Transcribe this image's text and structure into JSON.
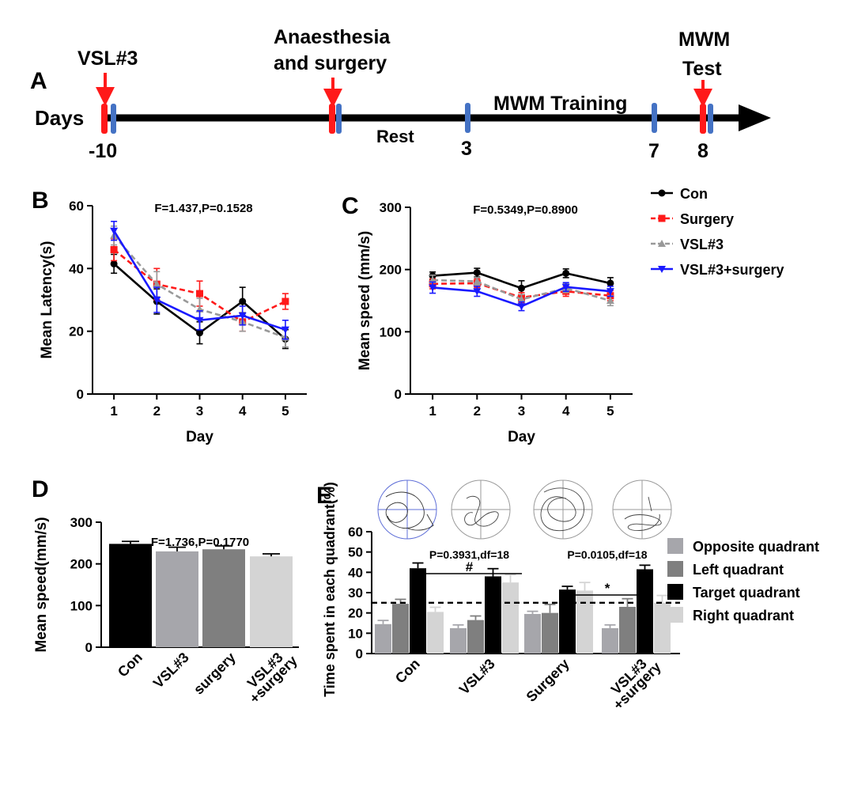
{
  "panels": {
    "a": "A",
    "b": "B",
    "c": "C",
    "d": "D",
    "e": "E"
  },
  "timeline": {
    "days_label": "Days",
    "events": [
      {
        "id": "vsl3",
        "lines": [
          "VSL#3"
        ]
      },
      {
        "id": "surgery",
        "lines": [
          "Anaesthesia",
          "and surgery"
        ]
      },
      {
        "id": "test",
        "lines": [
          "MWM",
          "Test"
        ]
      }
    ],
    "rest_label": "Rest",
    "training_label": "MWM Training",
    "ticks": [
      "-10",
      "3",
      "7",
      "8"
    ]
  },
  "colors": {
    "con": "#000000",
    "surgery": "#ff1a1a",
    "vsl3": "#999999",
    "vsl3_surgery": "#1a1aff",
    "arrow_red": "#ff1a1a",
    "tick_blue": "#4472c4",
    "bar_opposite": "#a6a6ab",
    "bar_left": "#7f7f7f",
    "bar_target": "#000000",
    "bar_right": "#d4d4d4",
    "track_blue": "#6070d8",
    "track_grey": "#9a9a9a"
  },
  "chart_data": [
    {
      "panel": "B",
      "type": "line",
      "title": "F=1.437,P=0.1528",
      "xlabel": "Day",
      "ylabel": "Mean Latency(s)",
      "x": [
        1,
        2,
        3,
        4,
        5
      ],
      "xlim": [
        0.5,
        5.5
      ],
      "ylim": [
        0,
        60
      ],
      "yticks": [
        0,
        20,
        40,
        60
      ],
      "series": [
        {
          "name": "Con",
          "key": "con",
          "values": [
            41.5,
            29.5,
            19.5,
            29.5,
            17.5
          ],
          "errors": [
            3,
            4,
            3.5,
            4.5,
            3
          ]
        },
        {
          "name": "Surgery",
          "key": "surgery",
          "values": [
            46,
            35,
            32,
            23,
            29.5
          ],
          "errors": [
            3.5,
            5,
            4,
            3,
            2.5
          ]
        },
        {
          "name": "VSL#3",
          "key": "vsl3",
          "values": [
            50.5,
            35,
            27,
            23,
            18
          ],
          "errors": [
            3,
            4,
            3.5,
            3,
            3
          ]
        },
        {
          "name": "VSL#3+surgery",
          "key": "vsl3_surgery",
          "values": [
            52,
            30,
            23.5,
            25,
            20.5
          ],
          "errors": [
            3,
            4,
            3,
            3,
            3
          ]
        }
      ]
    },
    {
      "panel": "C",
      "type": "line",
      "title": "F=0.5349,P=0.8900",
      "xlabel": "Day",
      "ylabel": "Mean speed (mm/s)",
      "x": [
        1,
        2,
        3,
        4,
        5
      ],
      "xlim": [
        0.5,
        5.5
      ],
      "ylim": [
        0,
        300
      ],
      "yticks": [
        0,
        100,
        200,
        300
      ],
      "legend": [
        "Con",
        "Surgery",
        "VSL#3",
        "VSL#3+surgery"
      ],
      "series": [
        {
          "name": "Con",
          "key": "con",
          "values": [
            190,
            195,
            170,
            194,
            178
          ],
          "errors": [
            6,
            7,
            12,
            7,
            9
          ]
        },
        {
          "name": "Surgery",
          "key": "surgery",
          "values": [
            177,
            178,
            155,
            165,
            158
          ],
          "errors": [
            8,
            7,
            8,
            8,
            8
          ]
        },
        {
          "name": "VSL#3",
          "key": "vsl3",
          "values": [
            183,
            181,
            152,
            170,
            150
          ],
          "errors": [
            8,
            6,
            8,
            7,
            8
          ]
        },
        {
          "name": "VSL#3+surgery",
          "key": "vsl3_surgery",
          "values": [
            171,
            165,
            141,
            172,
            165
          ],
          "errors": [
            9,
            8,
            7,
            7,
            8
          ]
        }
      ]
    },
    {
      "panel": "D",
      "type": "bar",
      "title": "F=1.736,P=0.1770",
      "ylabel": "Mean speed(mm/s)",
      "ylim": [
        0,
        300
      ],
      "yticks": [
        0,
        100,
        200,
        300
      ],
      "categories": [
        [
          "Con"
        ],
        [
          "VSL#3"
        ],
        [
          "surgery"
        ],
        [
          "VSL#3",
          "+surgery"
        ]
      ],
      "values": [
        248,
        230,
        235,
        218
      ],
      "errors": [
        6,
        10,
        8,
        6
      ],
      "bar_colors": [
        "#000000",
        "#a6a6ab",
        "#7f7f7f",
        "#d4d4d4"
      ]
    },
    {
      "panel": "E",
      "type": "bar",
      "ylabel": "Time spent in each quadrant(%)",
      "ylim": [
        0,
        60
      ],
      "yticks": [
        0,
        10,
        20,
        30,
        40,
        50,
        60
      ],
      "reference_line": 25,
      "categories": [
        [
          "Con"
        ],
        [
          "VSL#3"
        ],
        [
          "Surgery"
        ],
        [
          "VSL#3",
          "+surgery"
        ]
      ],
      "series": [
        {
          "name": "Opposite quadrant",
          "key": "bar_opposite",
          "values": [
            14.5,
            12.5,
            19.5,
            12.5
          ],
          "errors": [
            1.8,
            1.6,
            1.3,
            1.6
          ]
        },
        {
          "name": "Left quadrant",
          "key": "bar_left",
          "values": [
            24.5,
            16.5,
            20,
            23
          ],
          "errors": [
            2.2,
            2,
            4.2,
            4
          ]
        },
        {
          "name": "Target quadrant",
          "key": "bar_target",
          "values": [
            42,
            38,
            31.5,
            41.5
          ],
          "errors": [
            2.6,
            3.8,
            1.6,
            2
          ]
        },
        {
          "name": "Right quadrant",
          "key": "bar_right",
          "values": [
            20.5,
            35,
            31,
            25
          ],
          "errors": [
            2.3,
            3.8,
            4,
            3.6
          ]
        }
      ],
      "comparisons": [
        {
          "label": "P=0.3931,df=18",
          "mark": "#",
          "from": 0,
          "to": 1
        },
        {
          "label": "P=0.0105,df=18",
          "mark": "*",
          "from": 2,
          "to": 3
        }
      ]
    }
  ]
}
